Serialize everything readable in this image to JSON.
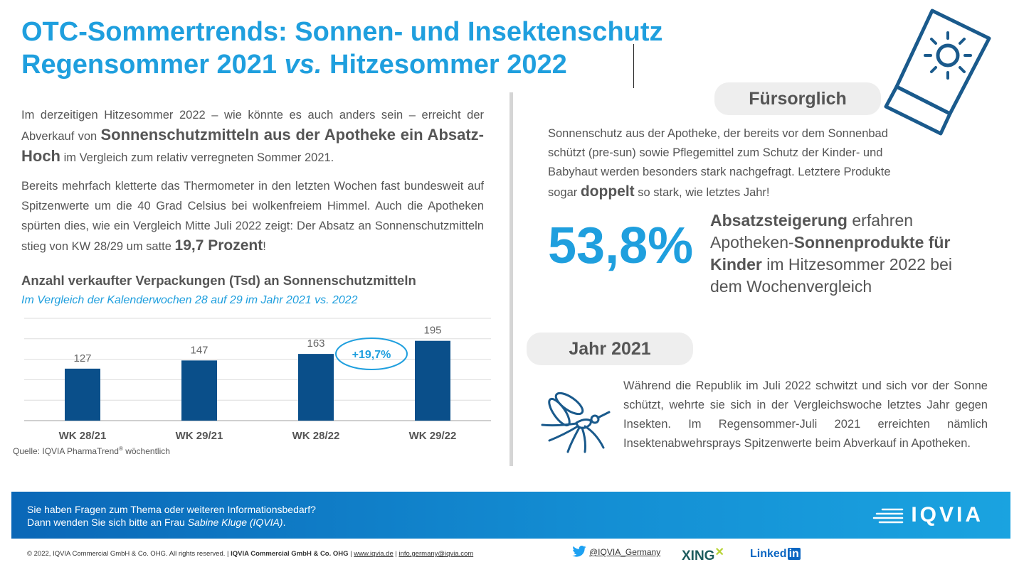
{
  "title": {
    "line1": "OTC-Sommertrends: Sonnen- und Insektenschutz",
    "line2_a": "Regensommer 2021 ",
    "line2_b": "vs.",
    "line2_c": " Hitzesommer 2022"
  },
  "intro": {
    "p1_a": "Im derzeitigen Hitzesommer 2022 – wie könnte es auch anders sein – erreicht der Abverkauf von ",
    "p1_bold": "Sonnenschutzmitteln aus der Apotheke ein Absatz-Hoch",
    "p1_b": " im Vergleich zum relativ verregneten Sommer 2021.",
    "p2_a": "Bereits mehrfach kletterte das Thermometer in den letzten Wochen fast bundesweit auf Spitzenwerte um die 40 Grad Celsius bei wolkenfreiem Himmel. Auch die Apotheken spürten dies, wie ein Vergleich Mitte Juli 2022 zeigt: Der Absatz an Sonnenschutzmitteln stieg von KW 28/29 um satte ",
    "p2_bold": "19,7 Prozent",
    "p2_b": "!"
  },
  "chart_data": {
    "type": "bar",
    "title": "Anzahl verkaufter Verpackungen (Tsd) an Sonnenschutzmitteln",
    "subtitle": "Im Vergleich der Kalenderwochen 28 auf 29 im Jahr 2021 vs. 2022",
    "categories": [
      "WK 28/21",
      "WK 29/21",
      "WK 28/22",
      "WK 29/22"
    ],
    "values": [
      127,
      147,
      163,
      195
    ],
    "value_labels": [
      "127",
      "147",
      "163",
      "195"
    ],
    "ylim": [
      0,
      250
    ],
    "grid": true,
    "annotation": "+19,7%",
    "color": "#0a4f8a"
  },
  "source": {
    "text": "Quelle: IQVIA PharmaTrend",
    "sup": "®",
    "text_b": " wöchentlich"
  },
  "fuersorglich": {
    "label": "Fürsorglich",
    "text_a": "Sonnenschutz aus der Apotheke, der bereits vor dem Sonnenbad schützt (pre-sun) sowie Pflegemittel zum Schutz der Kinder- und Babyhaut werden besonders stark nachgefragt. Letztere Produkte sogar ",
    "text_bold": "doppelt",
    "text_b": " so stark, wie letztes Jahr!"
  },
  "stat": {
    "value": "53,8%",
    "desc_bold1": "Absatzsteigerung",
    "desc_a": " erfahren Apotheken-",
    "desc_bold2": "Sonnenprodukte für Kinder",
    "desc_b": " im Hitzesommer 2022 bei dem Wochenvergleich"
  },
  "jahr": {
    "label": "Jahr 2021",
    "text": "Während die Republik im Juli 2022 schwitzt und sich vor der Sonne schützt, wehrte sie sich in der Vergleichswoche letztes Jahr gegen Insekten. Im Regensommer-Juli 2021 erreichten nämlich Insektenabwehrsprays Spitzenwerte beim Abverkauf in Apotheken."
  },
  "footer": {
    "line1": "Sie haben Fragen zum Thema oder weiteren Informationsbedarf?",
    "line2_a": "Dann wenden Sie sich bitte an Frau ",
    "line2_name": "Sabine Kluge (IQVIA)",
    "line2_b": ".",
    "logo": "IQVIA"
  },
  "bottom": {
    "copyright": "© 2022, IQVIA Commercial GmbH & Co. OHG. All rights reserved.  |  ",
    "company": "IQVIA Commercial GmbH & Co. OHG",
    "sep1": " | ",
    "url": "www.iqvia.de",
    "sep2": "  | ",
    "email": "info.germany@iqvia.com",
    "twitter": "@IQVIA_Germany",
    "xing": "XING",
    "linkedin": "Linked",
    "linkedin_in": "in"
  },
  "colors": {
    "accent": "#1f9fde",
    "bar": "#0a4f8a",
    "icon": "#1a5a8c"
  },
  "icons": [
    "sunscreen-tube-icon",
    "mosquito-icon",
    "twitter-icon",
    "iqvia-logo"
  ]
}
